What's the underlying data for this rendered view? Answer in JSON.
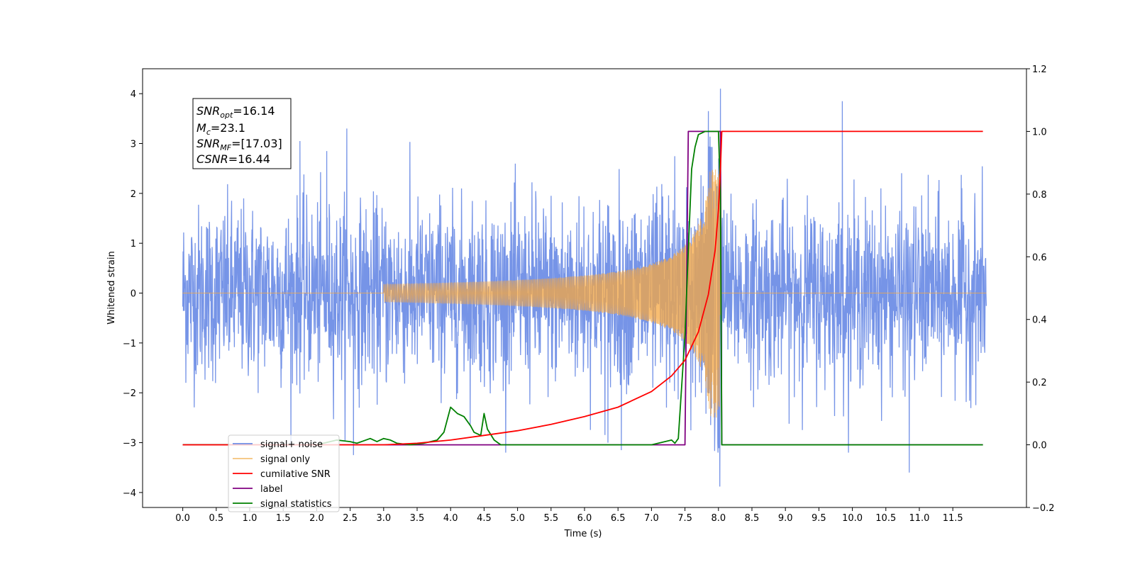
{
  "chart_data": {
    "type": "line",
    "xlabel": "Time (s)",
    "ylabel": "Whitened strain",
    "xlim": [
      -0.6,
      12.6
    ],
    "ylim": [
      -4.3,
      4.5
    ],
    "y2lim": [
      -0.2,
      1.2
    ],
    "x_ticks": [
      "0.0",
      "0.5",
      "1.0",
      "1.5",
      "2.0",
      "2.5",
      "3.0",
      "3.5",
      "4.0",
      "4.5",
      "5.0",
      "5.5",
      "6.0",
      "6.5",
      "7.0",
      "7.5",
      "8.0",
      "8.5",
      "9.0",
      "9.5",
      "10.0",
      "10.5",
      "11.0",
      "11.5"
    ],
    "y_ticks": [
      "4",
      "3",
      "2",
      "1",
      "0",
      "−1",
      "−2",
      "−3",
      "−4"
    ],
    "y2_ticks": [
      "1.2",
      "1.0",
      "0.8",
      "0.6",
      "0.4",
      "0.2",
      "0.0",
      "−0.2"
    ],
    "annotation": {
      "line1_base": "SNR",
      "line1_sub": "opt",
      "line1_value": "=16.14",
      "line2_base": "M",
      "line2_sub": "c",
      "line2_value": "=23.1",
      "line3_base": "SNR",
      "line3_sub": "MF",
      "line3_value": "=[17.03]",
      "line4_base": "CSNR",
      "line4_value": "=16.44"
    },
    "legend": {
      "placement": "lower-left",
      "entries": [
        "signal+ noise",
        "signal only",
        "cumilative SNR",
        "label",
        "signal statistics"
      ]
    },
    "series": [
      {
        "name": "signal+ noise",
        "axis": "left",
        "color": "#6f8ee6",
        "x_range": [
          0,
          12
        ],
        "noise_std": 0.95,
        "outliers": [
          [
            1.75,
            3.05
          ],
          [
            2.15,
            2.85
          ],
          [
            2.45,
            3.3
          ],
          [
            7.85,
            3.65
          ],
          [
            8.03,
            4.1
          ],
          [
            8.02,
            -3.88
          ],
          [
            9.85,
            3.85
          ],
          [
            10.85,
            -3.6
          ],
          [
            6.55,
            -3.15
          ],
          [
            6.35,
            -3.0
          ],
          [
            2.55,
            -3.25
          ]
        ]
      },
      {
        "name": "signal only",
        "axis": "left",
        "color": "#f5a742",
        "chirp_start": 3.0,
        "merger": 8.03,
        "peak_amplitude": 2.5
      },
      {
        "name": "cumilative SNR",
        "axis": "right",
        "color": "#ff0000",
        "x": [
          3.0,
          3.5,
          4.0,
          4.5,
          5.0,
          5.5,
          6.0,
          6.5,
          7.0,
          7.3,
          7.5,
          7.7,
          7.85,
          7.95,
          8.0,
          8.03,
          8.05,
          11.95
        ],
        "y": [
          0.0,
          0.005,
          0.015,
          0.03,
          0.045,
          0.065,
          0.09,
          0.12,
          0.17,
          0.22,
          0.27,
          0.36,
          0.48,
          0.62,
          0.75,
          0.88,
          1.0,
          1.0
        ]
      },
      {
        "name": "label",
        "axis": "right",
        "color": "#800080",
        "x": [
          0.0,
          7.5,
          7.55,
          8.03,
          8.05,
          11.95
        ],
        "y": [
          0.0,
          0.0,
          1.0,
          1.0,
          0.0,
          0.0
        ]
      },
      {
        "name": "signal statistics",
        "axis": "right",
        "color": "#008000",
        "x": [
          0.0,
          2.0,
          2.3,
          2.5,
          2.6,
          2.8,
          2.9,
          3.0,
          3.1,
          3.2,
          3.4,
          3.6,
          3.8,
          3.9,
          4.0,
          4.05,
          4.1,
          4.2,
          4.3,
          4.35,
          4.45,
          4.5,
          4.55,
          4.65,
          4.75,
          4.9,
          7.0,
          7.3,
          7.35,
          7.4,
          7.5,
          7.55,
          7.6,
          7.65,
          7.7,
          7.8,
          7.9,
          8.0,
          8.03,
          8.05,
          11.95
        ],
        "y": [
          0.0,
          0.0,
          0.015,
          0.01,
          0.005,
          0.02,
          0.01,
          0.02,
          0.015,
          0.005,
          0.0,
          0.005,
          0.015,
          0.04,
          0.12,
          0.11,
          0.1,
          0.09,
          0.06,
          0.04,
          0.03,
          0.1,
          0.05,
          0.015,
          0.0,
          0.0,
          0.0,
          0.015,
          0.005,
          0.02,
          0.35,
          0.62,
          0.88,
          0.95,
          0.99,
          1.0,
          1.0,
          1.0,
          0.8,
          0.0,
          0.0
        ]
      }
    ]
  }
}
